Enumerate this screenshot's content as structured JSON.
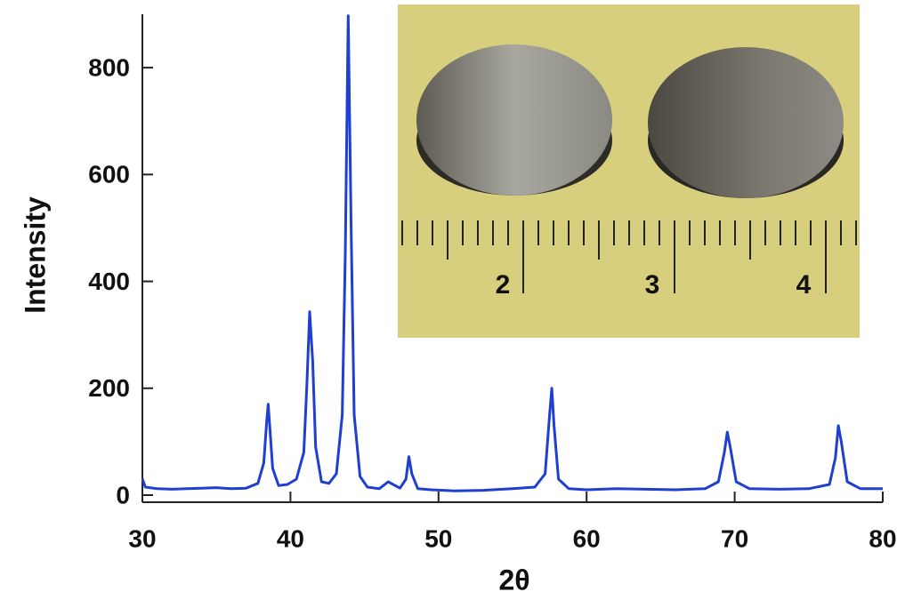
{
  "chart_data": {
    "type": "line",
    "x_label": "2θ",
    "y_label": "Intensity",
    "annotations": [
      "2",
      "3",
      "4"
    ],
    "x": [
      30,
      30.2,
      31,
      32,
      33,
      34,
      35,
      36,
      37,
      37.8,
      38.2,
      38.4,
      38.5,
      38.6,
      38.8,
      39.2,
      39.8,
      40.4,
      40.9,
      41.1,
      41.3,
      41.5,
      41.7,
      42.1,
      42.6,
      43.1,
      43.5,
      43.7,
      43.9,
      44.1,
      44.3,
      44.7,
      45.2,
      46,
      46.6,
      47.4,
      47.8,
      48.0,
      48.2,
      48.6,
      49.5,
      51,
      53,
      55,
      56.5,
      57.2,
      57.5,
      57.65,
      57.8,
      58.1,
      58.8,
      60,
      62,
      64,
      66,
      68,
      68.9,
      69.3,
      69.5,
      69.7,
      70.1,
      71,
      73,
      75,
      76.4,
      76.8,
      77.0,
      77.2,
      77.6,
      78.5,
      80
    ],
    "values": [
      30,
      15,
      12,
      11,
      12,
      13,
      14,
      12,
      13,
      22,
      60,
      140,
      170,
      130,
      50,
      18,
      20,
      30,
      80,
      200,
      343,
      250,
      90,
      25,
      22,
      40,
      150,
      450,
      897,
      500,
      150,
      35,
      15,
      12,
      25,
      13,
      30,
      72,
      40,
      12,
      10,
      8,
      9,
      12,
      15,
      40,
      150,
      200,
      130,
      30,
      12,
      10,
      12,
      11,
      10,
      12,
      25,
      80,
      118,
      90,
      25,
      12,
      11,
      12,
      20,
      70,
      130,
      100,
      25,
      12,
      12
    ],
    "color": "#1f3fd0",
    "xlim": [
      30,
      80
    ],
    "xticks": [
      30,
      40,
      50,
      60,
      70,
      80
    ],
    "ylim": [
      0,
      900
    ],
    "yticks": [
      0,
      200,
      400,
      600,
      800
    ]
  }
}
